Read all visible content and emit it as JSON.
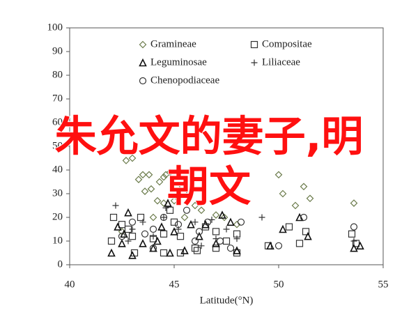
{
  "chart_data": {
    "type": "scatter",
    "x_label": "Latitude(°N)",
    "xlim": [
      40,
      55
    ],
    "xticks": [
      40,
      45,
      50,
      55
    ],
    "ylim": [
      0,
      100
    ],
    "yticks": [
      0,
      10,
      20,
      30,
      40,
      50,
      60,
      70,
      80,
      90,
      100
    ],
    "annotations": [
      "朱允文的妻子,明",
      "朝文"
    ],
    "series": [
      {
        "name": "Gramineae",
        "color": "#6b7b4b",
        "marker": "diamond",
        "x": [
          42.7,
          43,
          43.3,
          43.5,
          43.8,
          43.6,
          43.9,
          44.3,
          44.5,
          44.6,
          44.8,
          45.2,
          45.4,
          44.2,
          44.5,
          45,
          46,
          46.3,
          47,
          47.4,
          48,
          50,
          50.2,
          50.8,
          51.2,
          51.5,
          53.6,
          42.5,
          44,
          45.5
        ],
        "values": [
          44,
          45,
          36,
          38,
          38,
          31,
          32,
          35,
          37,
          38,
          39,
          40,
          33,
          27,
          26,
          27,
          25,
          23,
          21,
          20,
          17,
          38,
          30,
          25,
          33,
          28,
          26,
          14,
          20,
          20
        ]
      },
      {
        "name": "Compositae",
        "color": "#333333",
        "marker": "square",
        "x": [
          42,
          42.1,
          42.5,
          43,
          43.4,
          44,
          44.5,
          45,
          45.3,
          46,
          46.5,
          47,
          47.5,
          48,
          43.1,
          44.5,
          45.3,
          46.1,
          47,
          48,
          49.5,
          50.5,
          51,
          51.3,
          53.5,
          53.7,
          44.8,
          42.8
        ],
        "values": [
          10,
          20,
          17,
          12,
          20,
          11,
          13,
          18,
          12,
          7,
          16,
          14,
          10,
          13,
          5,
          5,
          5,
          6,
          7,
          5,
          8,
          16,
          9,
          14,
          13,
          9,
          23,
          15
        ]
      },
      {
        "name": "Leguminosae",
        "color": "#111111",
        "marker": "triangle",
        "x": [
          42,
          42.3,
          42.6,
          42.8,
          43,
          43.5,
          44,
          44.2,
          44.4,
          44.8,
          45,
          45.5,
          45.8,
          46.2,
          46.5,
          47,
          47.3,
          47.7,
          48,
          49.6,
          50.2,
          51,
          51.4,
          53.6,
          53.9,
          42.5,
          44.7
        ],
        "values": [
          5,
          16,
          13,
          22,
          4,
          9,
          7,
          10,
          16,
          5,
          14,
          6,
          17,
          12,
          17,
          9,
          21,
          18,
          6,
          8,
          15,
          20,
          12,
          7,
          8,
          9,
          26
        ]
      },
      {
        "name": "Liliaceae",
        "color": "#333333",
        "marker": "plus",
        "x": [
          42.2,
          42.8,
          43.5,
          44,
          44.6,
          45.2,
          45.6,
          46,
          46.3,
          47,
          47.5,
          48,
          44.5,
          43,
          49.2,
          46.8,
          53.6
        ],
        "values": [
          25,
          10,
          18,
          12,
          24,
          15,
          30,
          18,
          8,
          11,
          15,
          11,
          20,
          15,
          20,
          19,
          10
        ]
      },
      {
        "name": "Chenopodiaceae",
        "color": "#333333",
        "marker": "circle",
        "x": [
          42.5,
          43,
          43.6,
          44,
          44.5,
          45.2,
          45.6,
          46.2,
          46.6,
          47.2,
          47.7,
          48.2,
          50,
          51.2,
          53.6,
          44,
          46
        ],
        "values": [
          12,
          18,
          13,
          15,
          20,
          17,
          23,
          14,
          18,
          10,
          7,
          18,
          8,
          20,
          16,
          7,
          10
        ]
      }
    ]
  }
}
